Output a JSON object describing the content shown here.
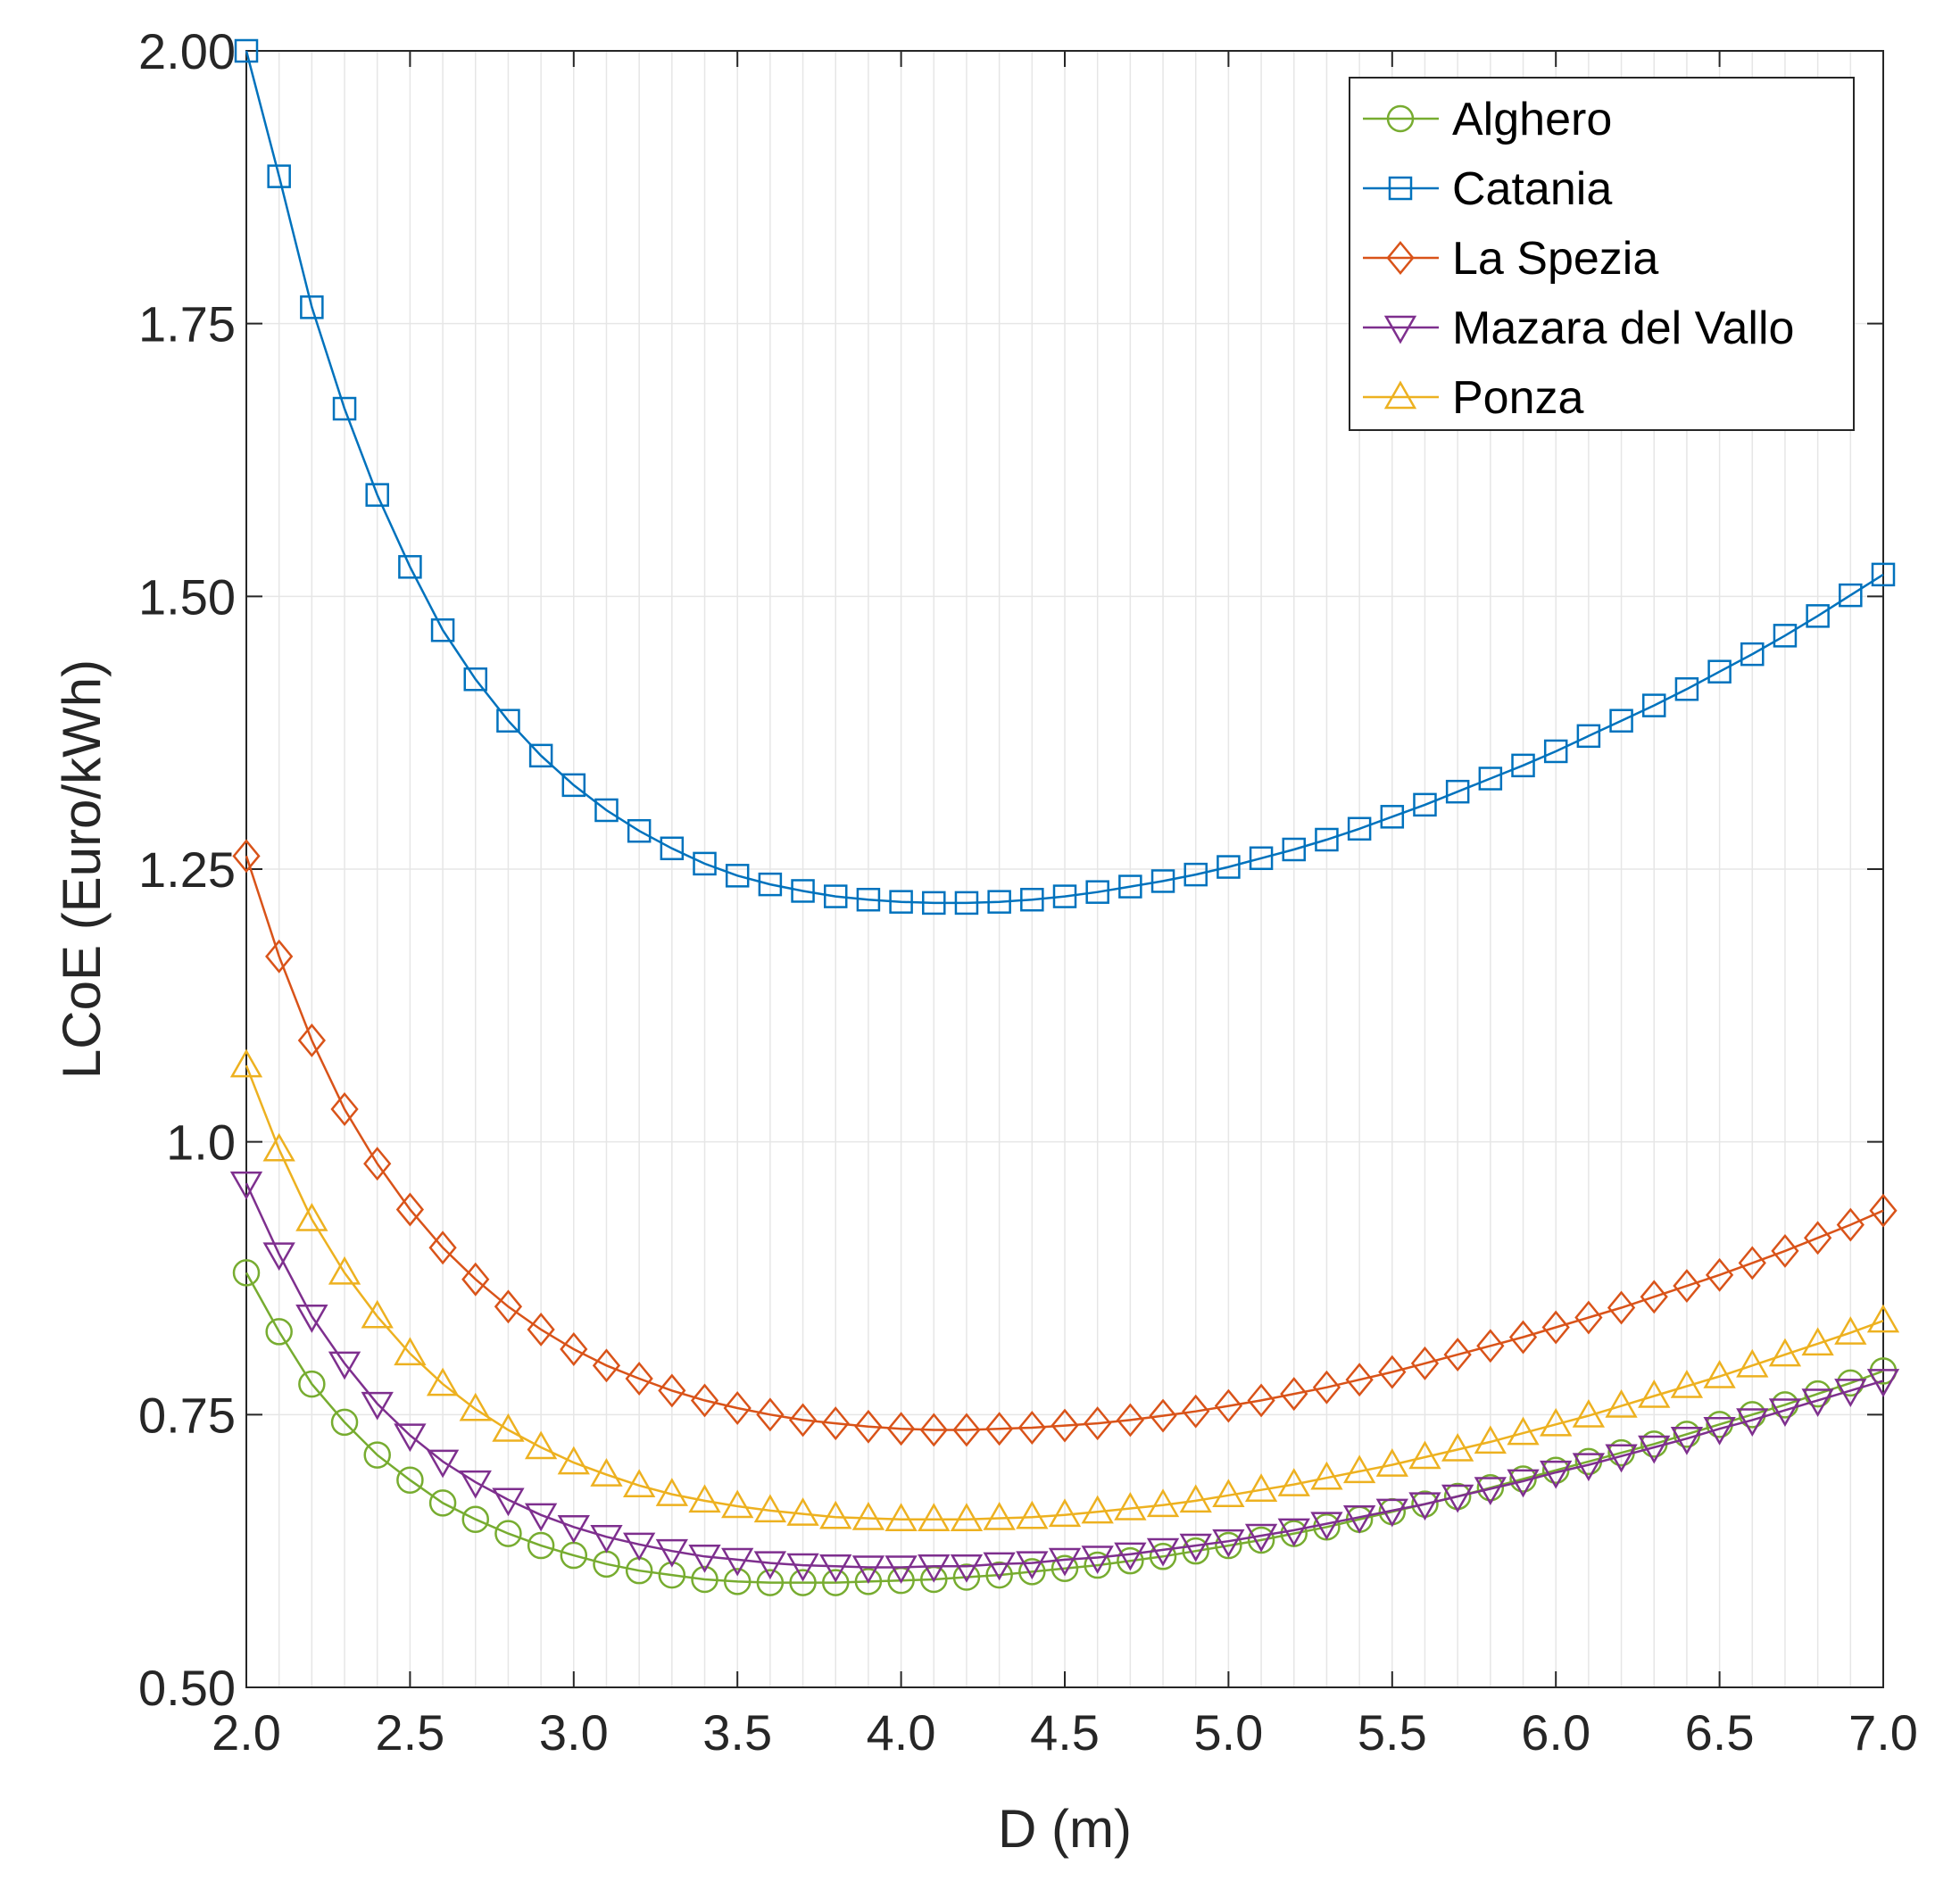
{
  "chart_data": {
    "type": "line",
    "title": "",
    "xlabel": "D (m)",
    "ylabel": "LCoE (Euro/kWh)",
    "xlim": [
      2.0,
      7.0
    ],
    "ylim": [
      0.5,
      2.0
    ],
    "x_ticks": [
      2.0,
      2.5,
      3.0,
      3.5,
      4.0,
      4.5,
      5.0,
      5.5,
      6.0,
      6.5,
      7.0
    ],
    "x_tick_labels": [
      "2.0",
      "2.5",
      "3.0",
      "3.5",
      "4.0",
      "4.5",
      "5.0",
      "5.5",
      "6.0",
      "6.5",
      "7.0"
    ],
    "y_ticks": [
      0.5,
      0.75,
      1.0,
      1.25,
      1.5,
      1.75,
      2.0
    ],
    "y_tick_labels": [
      "0.50",
      "0.75",
      "1.0",
      "1.25",
      "1.50",
      "1.75",
      "2.00"
    ],
    "grid": true,
    "legend_position": "top-right",
    "x": [
      2.0,
      2.1,
      2.2,
      2.3,
      2.4,
      2.5,
      2.6,
      2.7,
      2.8,
      2.9,
      3.0,
      3.1,
      3.2,
      3.3,
      3.4,
      3.5,
      3.6,
      3.7,
      3.8,
      3.9,
      4.0,
      4.1,
      4.2,
      4.3,
      4.4,
      4.5,
      4.6,
      4.7,
      4.8,
      4.9,
      5.0,
      5.1,
      5.2,
      5.3,
      5.4,
      5.5,
      5.6,
      5.7,
      5.8,
      5.9,
      6.0,
      6.1,
      6.2,
      6.3,
      6.4,
      6.5,
      6.6,
      6.7,
      6.8,
      6.9,
      7.0
    ],
    "series": [
      {
        "name": "Alghero",
        "color": "#77AC30",
        "marker": "circle",
        "values": [
          0.88,
          0.826,
          0.778,
          0.743,
          0.713,
          0.69,
          0.669,
          0.654,
          0.641,
          0.63,
          0.621,
          0.613,
          0.607,
          0.603,
          0.599,
          0.597,
          0.596,
          0.596,
          0.596,
          0.597,
          0.598,
          0.599,
          0.601,
          0.603,
          0.606,
          0.609,
          0.612,
          0.616,
          0.62,
          0.625,
          0.63,
          0.635,
          0.641,
          0.647,
          0.654,
          0.661,
          0.668,
          0.675,
          0.683,
          0.691,
          0.699,
          0.707,
          0.715,
          0.723,
          0.732,
          0.741,
          0.75,
          0.759,
          0.769,
          0.779,
          0.79
        ]
      },
      {
        "name": "Catania",
        "color": "#0072BD",
        "marker": "square",
        "values": [
          2.0,
          1.885,
          1.765,
          1.672,
          1.593,
          1.527,
          1.469,
          1.424,
          1.386,
          1.354,
          1.327,
          1.304,
          1.285,
          1.269,
          1.255,
          1.244,
          1.236,
          1.23,
          1.225,
          1.222,
          1.22,
          1.219,
          1.219,
          1.22,
          1.222,
          1.225,
          1.229,
          1.234,
          1.239,
          1.245,
          1.252,
          1.26,
          1.268,
          1.277,
          1.287,
          1.298,
          1.309,
          1.321,
          1.333,
          1.345,
          1.358,
          1.372,
          1.386,
          1.4,
          1.415,
          1.431,
          1.447,
          1.464,
          1.482,
          1.501,
          1.52
        ]
      },
      {
        "name": "La Spezia",
        "color": "#D95319",
        "marker": "diamond",
        "values": [
          1.262,
          1.17,
          1.093,
          1.03,
          0.98,
          0.938,
          0.903,
          0.874,
          0.849,
          0.828,
          0.81,
          0.795,
          0.783,
          0.772,
          0.763,
          0.756,
          0.75,
          0.745,
          0.742,
          0.739,
          0.737,
          0.736,
          0.736,
          0.737,
          0.738,
          0.74,
          0.742,
          0.745,
          0.749,
          0.753,
          0.758,
          0.763,
          0.769,
          0.775,
          0.782,
          0.789,
          0.797,
          0.805,
          0.813,
          0.821,
          0.83,
          0.839,
          0.848,
          0.858,
          0.868,
          0.878,
          0.889,
          0.9,
          0.912,
          0.924,
          0.937
        ]
      },
      {
        "name": "Mazara del Vallo",
        "color": "#7E2F8E",
        "marker": "triangle-down",
        "values": [
          0.962,
          0.897,
          0.84,
          0.797,
          0.76,
          0.731,
          0.707,
          0.688,
          0.672,
          0.658,
          0.647,
          0.638,
          0.631,
          0.625,
          0.62,
          0.617,
          0.614,
          0.612,
          0.611,
          0.61,
          0.61,
          0.611,
          0.611,
          0.613,
          0.614,
          0.617,
          0.619,
          0.622,
          0.626,
          0.63,
          0.634,
          0.639,
          0.644,
          0.65,
          0.656,
          0.662,
          0.668,
          0.675,
          0.682,
          0.689,
          0.697,
          0.704,
          0.712,
          0.72,
          0.728,
          0.737,
          0.745,
          0.754,
          0.763,
          0.772,
          0.781
        ]
      },
      {
        "name": "Ponza",
        "color": "#EDB120",
        "marker": "triangle-up",
        "values": [
          1.07,
          0.993,
          0.929,
          0.88,
          0.84,
          0.806,
          0.778,
          0.755,
          0.736,
          0.72,
          0.706,
          0.695,
          0.685,
          0.677,
          0.671,
          0.666,
          0.662,
          0.659,
          0.656,
          0.655,
          0.654,
          0.654,
          0.654,
          0.655,
          0.656,
          0.658,
          0.661,
          0.664,
          0.667,
          0.671,
          0.676,
          0.681,
          0.686,
          0.692,
          0.698,
          0.704,
          0.711,
          0.718,
          0.725,
          0.733,
          0.741,
          0.749,
          0.758,
          0.767,
          0.776,
          0.785,
          0.795,
          0.805,
          0.815,
          0.825,
          0.836
        ]
      }
    ]
  }
}
